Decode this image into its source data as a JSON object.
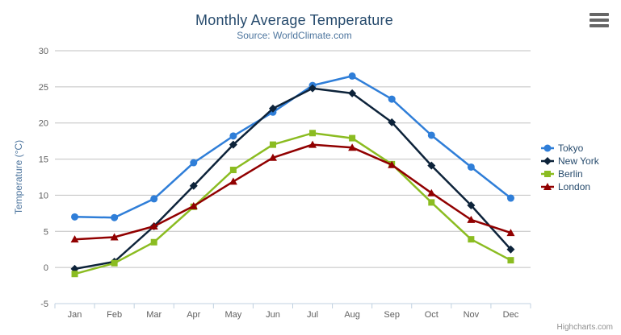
{
  "chart": {
    "title": "Monthly Average Temperature",
    "subtitle": "Source: WorldClimate.com",
    "credits": "Highcharts.com",
    "context_menu_icon": "hamburger-icon"
  },
  "chart_data": {
    "type": "line",
    "title": "Monthly Average Temperature",
    "subtitle": "Source: WorldClimate.com",
    "categories": [
      "Jan",
      "Feb",
      "Mar",
      "Apr",
      "May",
      "Jun",
      "Jul",
      "Aug",
      "Sep",
      "Oct",
      "Nov",
      "Dec"
    ],
    "xlabel": "",
    "ylabel": "Temperature (°C)",
    "ylim": [
      -5,
      30
    ],
    "yticks": [
      -5,
      0,
      5,
      10,
      15,
      20,
      25,
      30
    ],
    "grid": true,
    "legend_position": "right",
    "series": [
      {
        "name": "Tokyo",
        "color": "#2f7ed8",
        "marker": "circle",
        "values": [
          7.0,
          6.9,
          9.5,
          14.5,
          18.2,
          21.5,
          25.2,
          26.5,
          23.3,
          18.3,
          13.9,
          9.6
        ]
      },
      {
        "name": "New York",
        "color": "#0d233a",
        "marker": "diamond",
        "values": [
          -0.2,
          0.8,
          5.7,
          11.3,
          17.0,
          22.0,
          24.8,
          24.1,
          20.1,
          14.1,
          8.6,
          2.5
        ]
      },
      {
        "name": "Berlin",
        "color": "#8bbc21",
        "marker": "square",
        "values": [
          -0.9,
          0.6,
          3.5,
          8.4,
          13.5,
          17.0,
          18.6,
          17.9,
          14.3,
          9.0,
          3.9,
          1.0
        ]
      },
      {
        "name": "London",
        "color": "#910000",
        "marker": "triangle",
        "values": [
          3.9,
          4.2,
          5.7,
          8.5,
          11.9,
          15.2,
          17.0,
          16.6,
          14.2,
          10.3,
          6.6,
          4.8
        ]
      }
    ],
    "style": {
      "title_color": "#274b6d",
      "subtitle_color": "#4d759e",
      "axis_label_color": "#606060",
      "axis_title_color": "#4d759e",
      "gridline_color": "#c0c0c0",
      "axis_line_color": "#c0d0e0",
      "legend_text_color": "#274b6d",
      "credits_color": "#909090"
    }
  }
}
